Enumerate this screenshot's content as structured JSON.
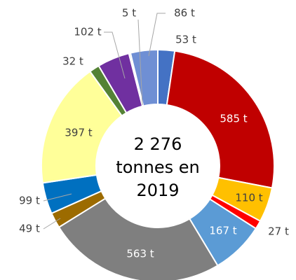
{
  "chart_data": {
    "type": "donut",
    "categories": [
      null,
      null,
      null,
      null,
      null,
      null,
      null,
      null,
      null,
      null,
      null,
      null,
      null
    ],
    "values": [
      53,
      585,
      110,
      27,
      167,
      563,
      49,
      99,
      397,
      32,
      102,
      5,
      86
    ],
    "value_labels": [
      "53 t",
      "585 t",
      "110 t",
      "27 t",
      "167 t",
      "563 t",
      "49 t",
      "99 t",
      "397 t",
      "32 t",
      "102 t",
      "5 t",
      "86 t"
    ],
    "colors": [
      "#4472c4",
      "#c00000",
      "#ffc000",
      "#ff0000",
      "#5b9bd5",
      "#7f7f7f",
      "#9c6b00",
      "#0070c0",
      "#ffff99",
      "#548235",
      "#7030a0",
      "#a5a5a5",
      "#6f8fd4"
    ],
    "center_label": [
      "2 276",
      "tonnes en",
      "2019"
    ]
  }
}
